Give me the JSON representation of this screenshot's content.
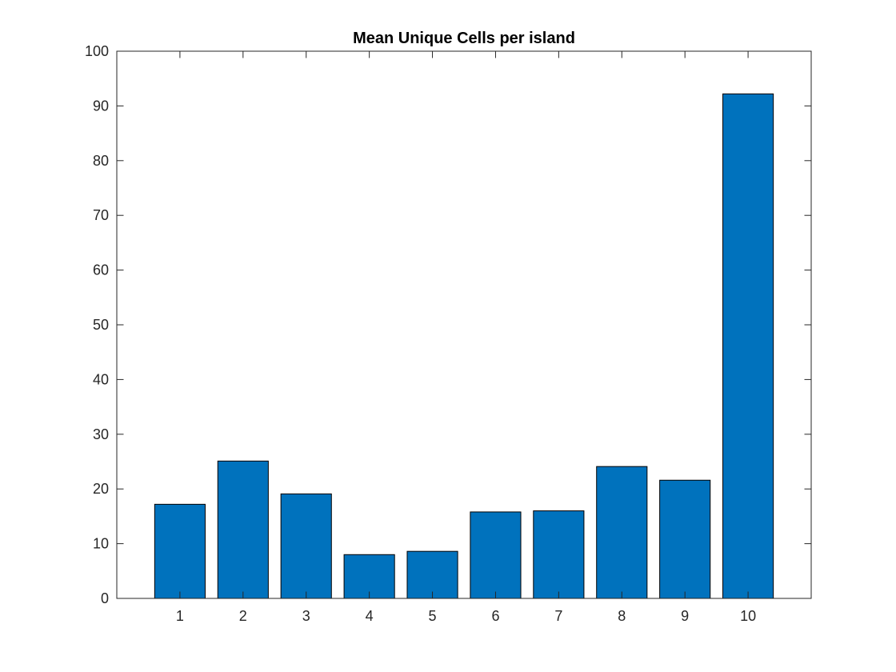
{
  "chart_data": {
    "type": "bar",
    "title": "Mean Unique Cells per island",
    "xlabel": "",
    "ylabel": "",
    "categories": [
      "1",
      "2",
      "3",
      "4",
      "5",
      "6",
      "7",
      "8",
      "9",
      "10"
    ],
    "values": [
      17.2,
      25.1,
      19.1,
      8.0,
      8.6,
      15.8,
      16.0,
      24.1,
      21.6,
      92.2
    ],
    "xlim": [
      0,
      11
    ],
    "ylim": [
      0,
      100
    ],
    "yticks": [
      0,
      10,
      20,
      30,
      40,
      50,
      60,
      70,
      80,
      90,
      100
    ],
    "grid": false,
    "legend": false,
    "colors": {
      "bar": "#0072BD",
      "bar_edge": "#000000",
      "axis": "#262626"
    }
  }
}
